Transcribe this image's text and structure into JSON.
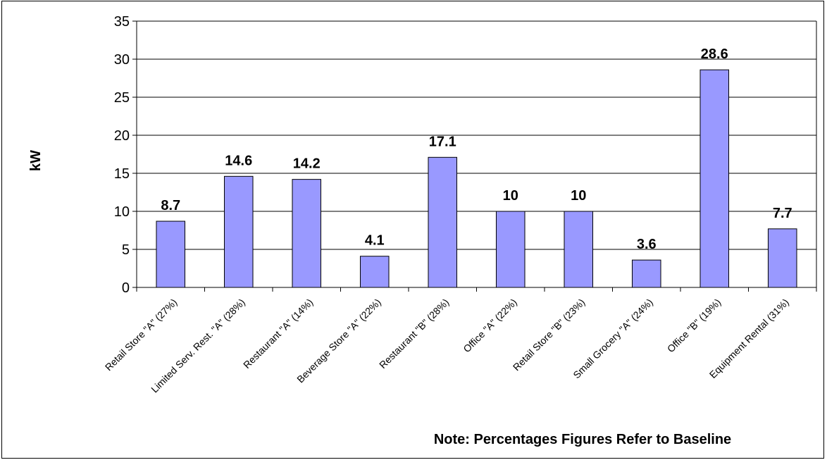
{
  "chart_data": {
    "type": "bar",
    "categories": [
      "Retail Store \"A\"  (27%)",
      "Limited Serv. Rest. \"A\"  (28%)",
      "Restaurant \"A\"  (14%)",
      "Beverage Store \"A\"  (22%)",
      "Restaurant \"B\"  (28%)",
      "Office \"A\"  (22%)",
      "Retail Store \"B\" (23%)",
      "Small Grocery \"A\"  (24%)",
      "Office \"B\"  (19%)",
      "Equipment Rental  (31%)"
    ],
    "values": [
      8.7,
      14.6,
      14.2,
      4.1,
      17.1,
      10,
      10,
      3.6,
      28.6,
      7.7
    ],
    "data_labels": [
      "8.7",
      "14.6",
      "14.2",
      "4.1",
      "17.1",
      "10",
      "10",
      "3.6",
      "28.6",
      "7.7"
    ],
    "ylabel": "kW",
    "xlabel": "",
    "ylim": [
      0,
      35
    ],
    "yticks": [
      0,
      5,
      10,
      15,
      20,
      25,
      30,
      35
    ],
    "grid": true,
    "legend": "none",
    "note": "Note: Percentages Figures Refer to Baseline",
    "colors": {
      "bar_fill": "#9999FF",
      "bar_stroke": "#000000",
      "gridline": "#000000"
    }
  }
}
